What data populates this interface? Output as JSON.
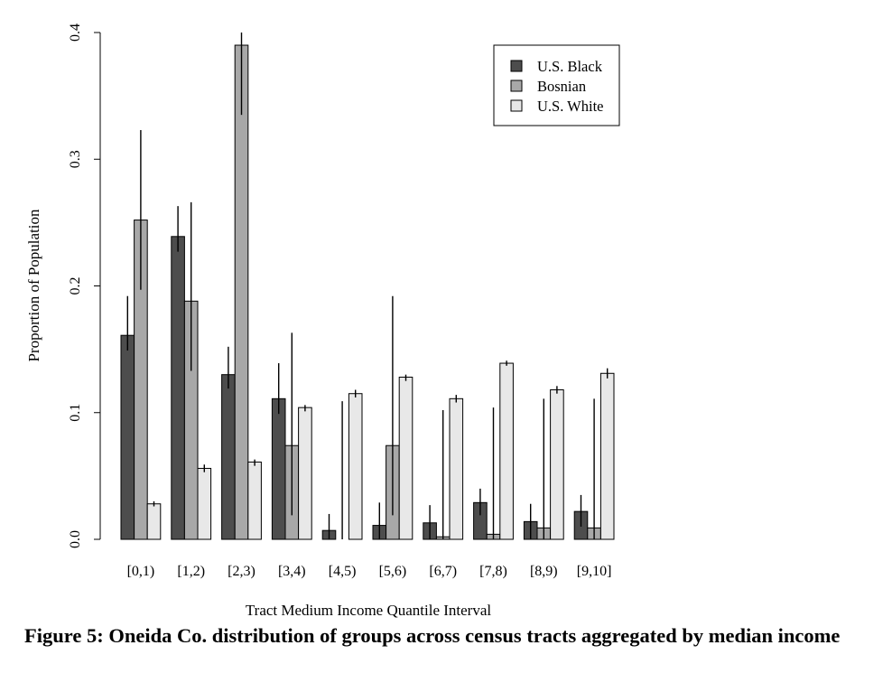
{
  "chart_data": {
    "type": "bar",
    "xlabel": "Tract Medium Income Quantile Interval",
    "ylabel": "Proportion of Population",
    "ylim": [
      0,
      0.4
    ],
    "yticks": [
      "0.0",
      "0.1",
      "0.2",
      "0.3",
      "0.4"
    ],
    "categories": [
      "[0,1)",
      "[1,2)",
      "[2,3)",
      "[3,4)",
      "[4,5)",
      "[5,6)",
      "[6,7)",
      "[7,8)",
      "[8,9)",
      "[9,10]"
    ],
    "legend_position": "top-right",
    "series": [
      {
        "name": "U.S. Black",
        "color": "#4d4d4d",
        "values": [
          0.161,
          0.239,
          0.13,
          0.111,
          0.007,
          0.011,
          0.013,
          0.029,
          0.014,
          0.022
        ],
        "err_low": [
          0.149,
          0.227,
          0.119,
          0.099,
          0.0,
          0.0,
          0.0,
          0.019,
          0.0,
          0.01
        ],
        "err_high": [
          0.192,
          0.263,
          0.152,
          0.139,
          0.02,
          0.029,
          0.027,
          0.04,
          0.028,
          0.035
        ]
      },
      {
        "name": "Bosnian",
        "color": "#a8a8a8",
        "values": [
          0.252,
          0.188,
          0.39,
          0.074,
          0.0,
          0.074,
          0.002,
          0.004,
          0.009,
          0.009
        ],
        "err_low": [
          0.197,
          0.133,
          0.335,
          0.019,
          0.0,
          0.019,
          0.0,
          0.0,
          0.0,
          0.0
        ],
        "err_high": [
          0.323,
          0.266,
          0.4,
          0.163,
          0.109,
          0.192,
          0.102,
          0.104,
          0.111,
          0.111
        ]
      },
      {
        "name": "U.S. White",
        "color": "#e8e8e8",
        "values": [
          0.028,
          0.056,
          0.061,
          0.104,
          0.115,
          0.128,
          0.111,
          0.139,
          0.118,
          0.131
        ],
        "err_low": [
          0.026,
          0.053,
          0.058,
          0.101,
          0.112,
          0.125,
          0.108,
          0.137,
          0.115,
          0.127
        ],
        "err_high": [
          0.03,
          0.059,
          0.063,
          0.106,
          0.118,
          0.13,
          0.114,
          0.141,
          0.121,
          0.135
        ]
      }
    ]
  },
  "caption": "Figure 5: Oneida Co. distribution of groups across census tracts aggregated by median income"
}
